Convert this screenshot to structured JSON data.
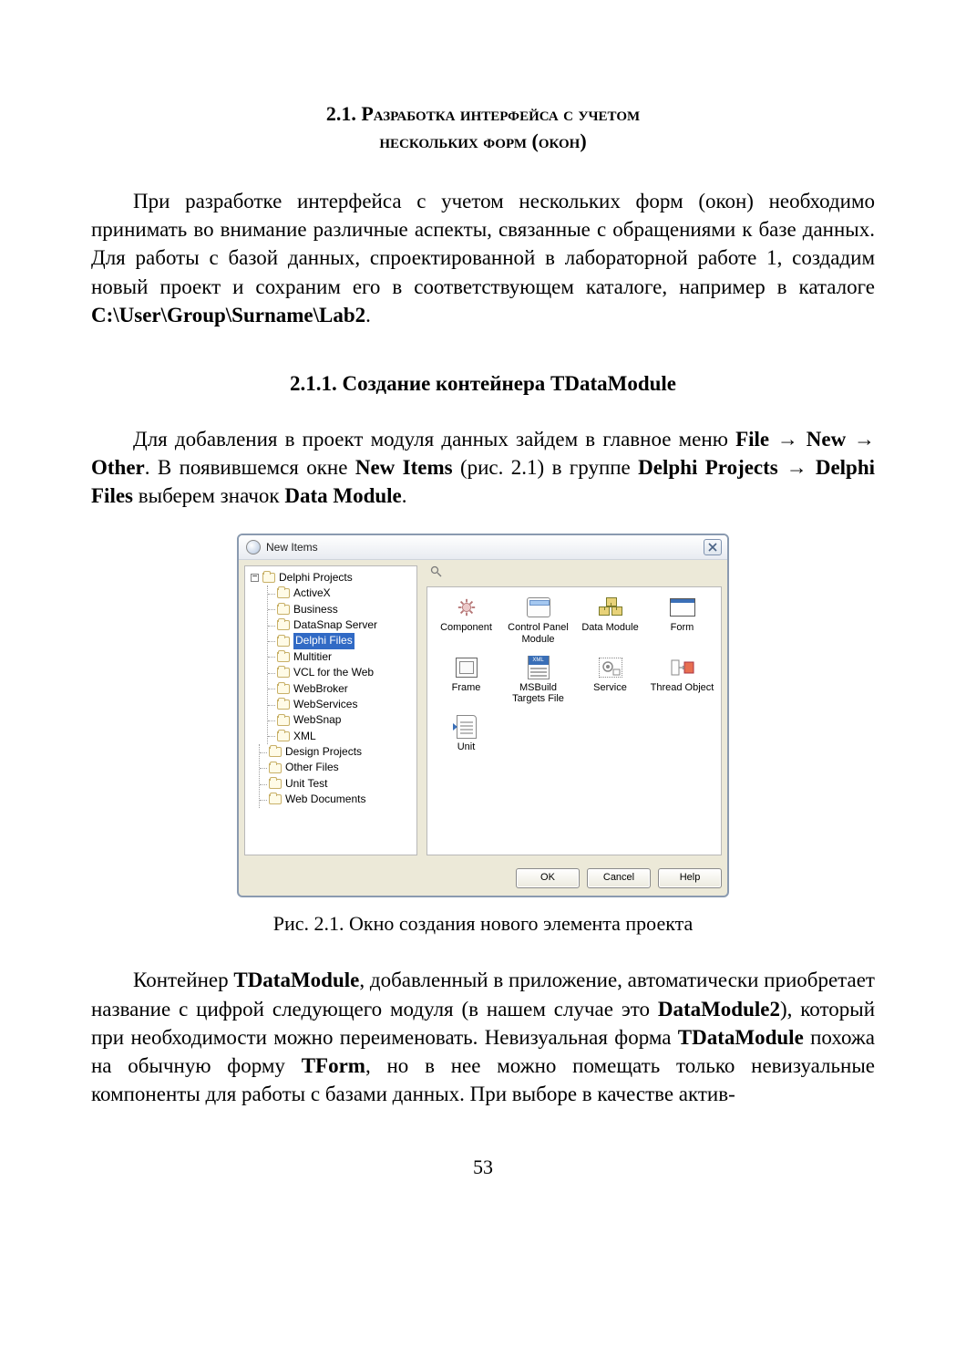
{
  "section_title_line1": "2.1. Разработка интерфейса с учетом",
  "section_title_line2": "нескольких форм (окон)",
  "para1_a": "При разработке интерфейса с учетом нескольких форм (окон) необходимо принимать во внимание различные аспекты, связанные с обращениями к базе данных. Для работы с базой данных, спроектированной в лабораторной работе 1, создадим новый проект и сохраним его в соответствующем каталоге, например в каталоге ",
  "para1_bold_path": "C:\\User\\Group\\Surname\\Lab2",
  "para1_b": ".",
  "subsection_title": "2.1.1. Создание контейнера TDataModule",
  "para2_a": "Для добавления в проект модуля данных зайдем в главное меню ",
  "para2_file": "File",
  "arrow": " → ",
  "para2_new": "New",
  "para2_other": "Other",
  "para2_b": ". В появившемся окне ",
  "para2_newitems": "New Items",
  "para2_c": " (рис. 2.1) в группе ",
  "para2_dp": "Delphi Projects",
  "para2_df": "Delphi Files",
  "para2_d": " выберем значок ",
  "para2_dm": "Data Module",
  "para2_e": ".",
  "window": {
    "title": "New Items",
    "tree": {
      "root": "Delphi Projects",
      "children": [
        "ActiveX",
        "Business",
        "DataSnap Server",
        "Delphi Files",
        "Multitier",
        "VCL for the Web",
        "WebBroker",
        "WebServices",
        "WebSnap",
        "XML"
      ],
      "selected_index": 3,
      "siblings": [
        "Design Projects",
        "Other Files",
        "Unit Test",
        "Web Documents"
      ]
    },
    "grid": [
      {
        "label": "Component"
      },
      {
        "label": "Control Panel\nModule"
      },
      {
        "label": "Data Module"
      },
      {
        "label": "Form"
      },
      {
        "label": "Frame"
      },
      {
        "label": "MSBuild\nTargets File"
      },
      {
        "label": "Service"
      },
      {
        "label": "Thread Object"
      },
      {
        "label": "Unit"
      }
    ],
    "buttons": {
      "ok": "OK",
      "cancel": "Cancel",
      "help": "Help"
    }
  },
  "figure_caption": "Рис. 2.1. Окно создания нового элемента проекта",
  "para3_a": "Контейнер ",
  "para3_tdm": "TDataModule",
  "para3_b": ", добавленный в приложение, автоматически приобретает название с цифрой следующего модуля (в нашем случае это ",
  "para3_dm2": "DataModule2",
  "para3_c": "), который при необходимости можно переименовать. Невизуальная форма ",
  "para3_tdm2": "TDataModule",
  "para3_d": " похожа на обычную форму ",
  "para3_tform": "TForm",
  "para3_e": ", но в нее можно помещать только невизуальные компоненты для работы с базами данных. При выборе в качестве актив-",
  "page_number": "53"
}
